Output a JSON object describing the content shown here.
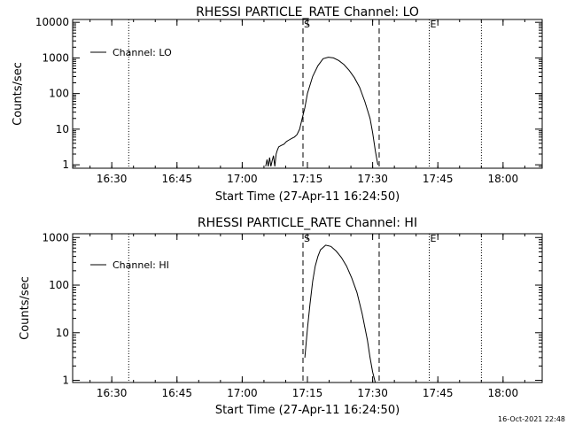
{
  "chart_data": [
    {
      "type": "line",
      "title": "RHESSI PARTICLE_RATE Channel: LO",
      "xlabel": "Start Time (27-Apr-11 16:24:50)",
      "ylabel": "Counts/sec",
      "yscale": "log",
      "xlim": [
        16.35,
        18.15
      ],
      "ylim": [
        0.8,
        12000
      ],
      "x_tick_values": [
        16.5,
        16.75,
        17.0,
        17.25,
        17.5,
        17.75,
        18.0
      ],
      "x_tick_labels": [
        "16:30",
        "16:45",
        "17:00",
        "17:15",
        "17:30",
        "17:45",
        "18:00"
      ],
      "y_tick_values": [
        1,
        10,
        100,
        1000,
        10000
      ],
      "y_tick_labels": [
        "1",
        "10",
        "100",
        "1000",
        "10000"
      ],
      "legend": "Channel: LO",
      "markers": {
        "start": "S",
        "end": "E"
      },
      "vlines_dotted": [
        16.565,
        17.717,
        17.917
      ],
      "vlines_dashed": [
        17.233,
        17.525
      ],
      "series": [
        {
          "name": "Channel: LO",
          "x": [
            17.09,
            17.095,
            17.1,
            17.105,
            17.11,
            17.115,
            17.12,
            17.125,
            17.13,
            17.135,
            17.14,
            17.15,
            17.16,
            17.17,
            17.18,
            17.19,
            17.2,
            17.21,
            17.22,
            17.23,
            17.24,
            17.25,
            17.27,
            17.29,
            17.31,
            17.33,
            17.35,
            17.37,
            17.39,
            17.41,
            17.43,
            17.45,
            17.47,
            17.49,
            17.5,
            17.51,
            17.52
          ],
          "values": [
            0.9,
            1.4,
            0.9,
            1.6,
            0.9,
            1.3,
            1.8,
            0.9,
            2.0,
            2.6,
            3.2,
            3.5,
            3.8,
            4.5,
            5.0,
            5.5,
            6.0,
            7.0,
            10,
            20,
            40,
            100,
            300,
            600,
            950,
            1050,
            1000,
            850,
            650,
            450,
            280,
            150,
            60,
            20,
            8,
            2.5,
            1.0
          ]
        }
      ]
    },
    {
      "type": "line",
      "title": "RHESSI PARTICLE_RATE Channel: HI",
      "xlabel": "Start Time (27-Apr-11 16:24:50)",
      "ylabel": "Counts/sec",
      "yscale": "log",
      "xlim": [
        16.35,
        18.15
      ],
      "ylim": [
        0.9,
        1200
      ],
      "x_tick_values": [
        16.5,
        16.75,
        17.0,
        17.25,
        17.5,
        17.75,
        18.0
      ],
      "x_tick_labels": [
        "16:30",
        "16:45",
        "17:00",
        "17:15",
        "17:30",
        "17:45",
        "18:00"
      ],
      "y_tick_values": [
        1,
        10,
        100,
        1000
      ],
      "y_tick_labels": [
        "1",
        "10",
        "100",
        "1000"
      ],
      "legend": "Channel: HI",
      "markers": {
        "start": "S",
        "end": "E"
      },
      "vlines_dotted": [
        16.565,
        17.717,
        17.917
      ],
      "vlines_dashed": [
        17.233,
        17.525
      ],
      "series": [
        {
          "name": "Channel: HI",
          "x": [
            17.24,
            17.25,
            17.26,
            17.27,
            17.28,
            17.29,
            17.3,
            17.32,
            17.34,
            17.36,
            17.38,
            17.4,
            17.42,
            17.44,
            17.46,
            17.48,
            17.49,
            17.5,
            17.51
          ],
          "values": [
            3,
            12,
            40,
            120,
            250,
            400,
            550,
            690,
            650,
            520,
            380,
            250,
            140,
            70,
            25,
            7,
            3,
            1.5,
            0.9
          ]
        }
      ]
    }
  ],
  "footer": {
    "timestamp": "16-Oct-2021 22:48"
  }
}
